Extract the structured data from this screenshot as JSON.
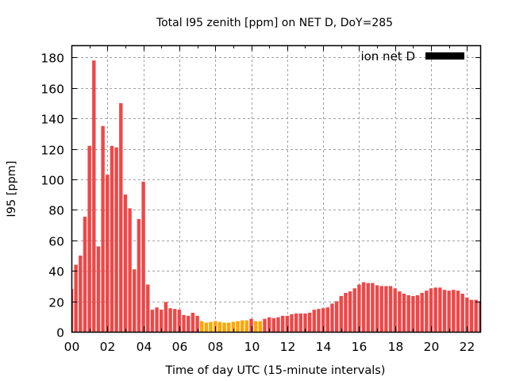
{
  "chart_data": {
    "type": "bar",
    "title": "Total I95 zenith [ppm] on NET D, DoY=285",
    "xlabel": "Time of day UTC (15-minute intervals)",
    "ylabel": "I95 [ppm]",
    "xlim": [
      0,
      22.78
    ],
    "ylim": [
      0,
      188
    ],
    "grid": true,
    "legend": {
      "position": "top-right",
      "entries": [
        {
          "label": "ion net D",
          "color": "#000000"
        }
      ]
    },
    "x_ticks": [
      {
        "value": 0,
        "label": "00"
      },
      {
        "value": 2,
        "label": "02"
      },
      {
        "value": 4,
        "label": "04"
      },
      {
        "value": 6,
        "label": "06"
      },
      {
        "value": 8,
        "label": "08"
      },
      {
        "value": 10,
        "label": "10"
      },
      {
        "value": 12,
        "label": "12"
      },
      {
        "value": 14,
        "label": "14"
      },
      {
        "value": 16,
        "label": "16"
      },
      {
        "value": 18,
        "label": "18"
      },
      {
        "value": 20,
        "label": "20"
      },
      {
        "value": 22,
        "label": "22"
      }
    ],
    "y_ticks": [
      {
        "value": 0,
        "label": "0"
      },
      {
        "value": 20,
        "label": "20"
      },
      {
        "value": 40,
        "label": "40"
      },
      {
        "value": 60,
        "label": "60"
      },
      {
        "value": 80,
        "label": "80"
      },
      {
        "value": 100,
        "label": "100"
      },
      {
        "value": 120,
        "label": "120"
      },
      {
        "value": 140,
        "label": "140"
      },
      {
        "value": 160,
        "label": "160"
      },
      {
        "value": 180,
        "label": "180"
      }
    ],
    "interval_hours": 0.25,
    "colors": {
      "high": "#ef4747",
      "low": "#ffa500"
    },
    "values": [
      28,
      44,
      50,
      75.5,
      122,
      178,
      56,
      135,
      103,
      122,
      121,
      150,
      90,
      81,
      41,
      74,
      98.5,
      31,
      14.5,
      16,
      14.5,
      19.5,
      15.5,
      15,
      14.5,
      11,
      10.5,
      12.5,
      10.5,
      7,
      6,
      6.5,
      7,
      6.5,
      6,
      6,
      6.5,
      7,
      7.5,
      7.5,
      8.5,
      7,
      7,
      8.5,
      9.5,
      9,
      9.5,
      10.5,
      10.5,
      11.5,
      12,
      12,
      12,
      12.5,
      14.5,
      15,
      15.5,
      16,
      18.5,
      20,
      23.5,
      25.5,
      26.5,
      28.5,
      31,
      32.5,
      32,
      32,
      30.5,
      30,
      30,
      30,
      28.5,
      26.5,
      25,
      24,
      23.5,
      24,
      25.5,
      27,
      28.5,
      29,
      29,
      27.5,
      27,
      27.5,
      27,
      25,
      22.5,
      21,
      21,
      20
    ],
    "bar_colors": [
      "high",
      "high",
      "high",
      "high",
      "high",
      "high",
      "high",
      "high",
      "high",
      "high",
      "high",
      "high",
      "high",
      "high",
      "high",
      "high",
      "high",
      "high",
      "high",
      "high",
      "high",
      "high",
      "high",
      "high",
      "high",
      "high",
      "high",
      "high",
      "high",
      "low",
      "low",
      "low",
      "low",
      "low",
      "low",
      "low",
      "low",
      "low",
      "low",
      "low",
      "high",
      "low",
      "low",
      "high",
      "high",
      "high",
      "high",
      "high",
      "high",
      "high",
      "high",
      "high",
      "high",
      "high",
      "high",
      "high",
      "high",
      "high",
      "high",
      "high",
      "high",
      "high",
      "high",
      "high",
      "high",
      "high",
      "high",
      "high",
      "high",
      "high",
      "high",
      "high",
      "high",
      "high",
      "high",
      "high",
      "high",
      "high",
      "high",
      "high",
      "high",
      "high",
      "high",
      "high",
      "high",
      "high",
      "high",
      "high",
      "high",
      "high",
      "high",
      "high"
    ]
  }
}
